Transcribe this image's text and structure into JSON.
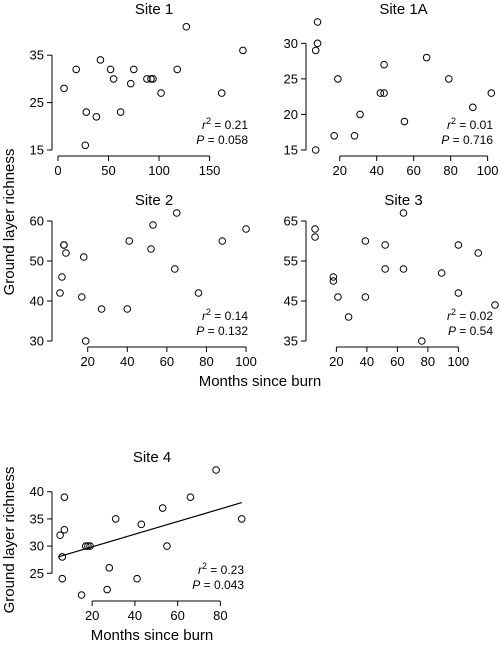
{
  "figure": {
    "ylabel": "Ground layer richness",
    "xlabel": "Months since burn"
  },
  "chart_data": [
    {
      "type": "scatter",
      "title": "Site 1",
      "xlim": [
        0,
        190
      ],
      "ylim": [
        15,
        42
      ],
      "xticks": [
        0,
        50,
        100,
        150
      ],
      "yticks": [
        15,
        25,
        35
      ],
      "r2": "0.21",
      "p": "0.058",
      "x": [
        6,
        18,
        27,
        28,
        38,
        42,
        52,
        55,
        62,
        72,
        75,
        88,
        92,
        94,
        102,
        118,
        127,
        162,
        183
      ],
      "y": [
        28,
        32,
        16,
        23,
        22,
        34,
        32,
        30,
        23,
        29,
        32,
        30,
        30,
        30,
        27,
        32,
        41,
        27,
        36
      ],
      "fit": null
    },
    {
      "type": "scatter",
      "title": "Site 1A",
      "xlim": [
        5,
        104
      ],
      "ylim": [
        15,
        33
      ],
      "xticks": [
        20,
        40,
        60,
        80,
        100
      ],
      "yticks": [
        15,
        20,
        25,
        30
      ],
      "r2": "0.01",
      "p": "0.716",
      "x": [
        7,
        7,
        8,
        8,
        17,
        19,
        28,
        31,
        42,
        44,
        44,
        55,
        67,
        79,
        92,
        102
      ],
      "y": [
        15,
        29,
        30,
        33,
        17,
        25,
        17,
        20,
        23,
        27,
        23,
        19,
        28,
        25,
        21,
        23
      ],
      "fit": null
    },
    {
      "type": "scatter",
      "title": "Site 2",
      "xlim": [
        5,
        102
      ],
      "ylim": [
        30,
        62
      ],
      "xticks": [
        20,
        40,
        60,
        80,
        100
      ],
      "yticks": [
        30,
        40,
        50,
        60
      ],
      "r2": "0.14",
      "p": "0.132",
      "x": [
        6,
        7,
        8,
        8,
        9,
        17,
        18,
        19,
        27,
        40,
        41,
        52,
        53,
        64,
        65,
        76,
        88,
        100
      ],
      "y": [
        42,
        46,
        54,
        54,
        52,
        41,
        51,
        30,
        38,
        38,
        55,
        53,
        59,
        48,
        62,
        42,
        55,
        58
      ],
      "fit": null
    },
    {
      "type": "scatter",
      "title": "Site 3",
      "xlim": [
        4,
        124
      ],
      "ylim": [
        35,
        67
      ],
      "xticks": [
        20,
        40,
        60,
        80,
        100
      ],
      "yticks": [
        35,
        45,
        55,
        65
      ],
      "r2": "0.02",
      "p": "0.54",
      "x": [
        6,
        6,
        18,
        18,
        21,
        28,
        39,
        39,
        52,
        52,
        64,
        64,
        76,
        89,
        100,
        100,
        113,
        124
      ],
      "y": [
        61,
        63,
        51,
        50,
        46,
        41,
        46,
        60,
        53,
        59,
        67,
        53,
        35,
        52,
        59,
        47,
        57,
        44
      ],
      "fit": null
    },
    {
      "type": "scatter",
      "title": "Site 4",
      "xlim": [
        4,
        92
      ],
      "ylim": [
        21,
        44
      ],
      "xticks": [
        20,
        40,
        60,
        80
      ],
      "yticks": [
        25,
        30,
        35,
        40
      ],
      "r2": "0.23",
      "p": "0.043",
      "x": [
        5,
        6,
        6,
        7,
        7,
        15,
        17,
        18,
        19,
        27,
        28,
        31,
        41,
        43,
        53,
        55,
        66,
        78,
        90
      ],
      "y": [
        32,
        24,
        28,
        33,
        39,
        21,
        30,
        30,
        30,
        22,
        26,
        35,
        24,
        34,
        37,
        30,
        39,
        44,
        35
      ],
      "fit": {
        "x0": 4,
        "y0": 28,
        "x1": 90,
        "y1": 38
      }
    }
  ]
}
